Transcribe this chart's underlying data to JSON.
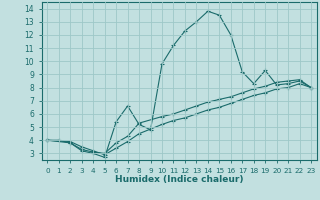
{
  "xlabel": "Humidex (Indice chaleur)",
  "bg_color": "#c2e0e0",
  "grid_color": "#9ec8c8",
  "line_color": "#1a6b6b",
  "xlim": [
    -0.5,
    23.5
  ],
  "ylim": [
    2.5,
    14.5
  ],
  "xticks": [
    0,
    1,
    2,
    3,
    4,
    5,
    6,
    7,
    8,
    9,
    10,
    11,
    12,
    13,
    14,
    15,
    16,
    17,
    18,
    19,
    20,
    21,
    22,
    23
  ],
  "yticks": [
    3,
    4,
    5,
    6,
    7,
    8,
    9,
    10,
    11,
    12,
    13,
    14
  ],
  "line1_x": [
    0,
    1,
    2,
    3,
    4,
    5,
    6,
    7,
    8,
    9,
    10,
    11,
    12,
    13,
    14,
    15,
    16,
    17,
    18,
    19,
    20,
    21,
    22,
    23
  ],
  "line1_y": [
    4.0,
    4.0,
    3.8,
    3.2,
    3.0,
    2.7,
    5.4,
    6.6,
    5.2,
    4.8,
    9.8,
    11.2,
    12.3,
    13.0,
    13.8,
    13.5,
    12.0,
    9.2,
    8.3,
    9.3,
    8.2,
    8.3,
    8.5,
    8.0
  ],
  "line2_x": [
    0,
    2,
    3,
    4,
    5,
    6,
    7,
    8,
    10,
    11,
    12,
    13,
    14,
    15,
    16,
    17,
    18,
    19,
    20,
    21,
    22,
    23
  ],
  "line2_y": [
    4.0,
    3.8,
    3.3,
    3.1,
    3.0,
    3.8,
    4.3,
    5.3,
    5.8,
    6.0,
    6.3,
    6.6,
    6.9,
    7.1,
    7.3,
    7.6,
    7.9,
    8.1,
    8.4,
    8.5,
    8.6,
    8.0
  ],
  "line3_x": [
    0,
    2,
    3,
    4,
    5,
    6,
    7,
    8,
    10,
    11,
    12,
    13,
    14,
    15,
    16,
    17,
    18,
    19,
    20,
    21,
    22,
    23
  ],
  "line3_y": [
    4.0,
    3.9,
    3.5,
    3.2,
    2.9,
    3.4,
    3.9,
    4.5,
    5.2,
    5.5,
    5.7,
    6.0,
    6.3,
    6.5,
    6.8,
    7.1,
    7.4,
    7.6,
    7.9,
    8.0,
    8.3,
    8.0
  ]
}
